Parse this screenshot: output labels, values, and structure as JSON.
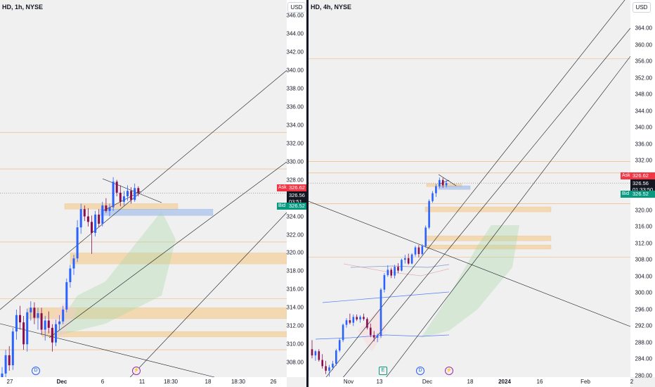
{
  "left": {
    "title": "HD, 1h, NYSE",
    "currency": "USD",
    "price_ticks": [
      "346.00",
      "344.00",
      "342.00",
      "340.00",
      "338.00",
      "336.00",
      "334.00",
      "332.00",
      "330.00",
      "328.00",
      "324.00",
      "322.00",
      "320.00",
      "318.00",
      "316.00",
      "314.00",
      "312.00",
      "310.00",
      "308.00"
    ],
    "time_labels": [
      "27",
      "Dec",
      "6",
      "11",
      "18:30",
      "18",
      "18:30",
      "26"
    ],
    "bold_time_labels": [
      "Dec"
    ],
    "ask_label": "Ask",
    "ask_value": "326.62",
    "last_value": "326.56",
    "countdown": "03:51",
    "bid_label": "Bid",
    "bid_value": "326.52",
    "markers": [
      {
        "glyph": "D",
        "color": "#2962ff"
      },
      {
        "glyph": "⚡",
        "color": "#9c27b0"
      }
    ]
  },
  "right": {
    "title": "HD, 4h, NYSE",
    "currency": "USD",
    "price_ticks": [
      "364.00",
      "360.00",
      "356.00",
      "352.00",
      "348.00",
      "344.00",
      "340.00",
      "336.00",
      "332.00",
      "320.00",
      "316.00",
      "312.00",
      "308.00",
      "304.00",
      "300.00",
      "296.00",
      "292.00",
      "288.00",
      "284.00",
      "280.00"
    ],
    "time_labels": [
      "Nov",
      "13",
      "Dec",
      "18",
      "2024",
      "16",
      "Feb",
      "2"
    ],
    "bold_time_labels": [
      "2024"
    ],
    "ask_label": "Ask",
    "ask_value": "326.62",
    "last_value": "326.56",
    "countdown": "01:33:50",
    "bid_label": "Bid",
    "bid_value": "326.52",
    "markers": [
      {
        "glyph": "E",
        "color": "#089981"
      },
      {
        "glyph": "D",
        "color": "#2962ff"
      },
      {
        "glyph": "⚡",
        "color": "#9c27b0"
      }
    ]
  },
  "colors": {
    "up": "#2962ff",
    "down": "#880e4f",
    "zone": "#f5c77e",
    "zone_line": "#f0a050",
    "blue_zone": "#90b4ec",
    "ask": "#f23645",
    "bid": "#089981",
    "last": "#131722"
  },
  "candles_left": [
    [
      305.5,
      307.5,
      304.2,
      306.8
    ],
    [
      306.8,
      309.4,
      305.9,
      308.8
    ],
    [
      308.8,
      309.8,
      307.1,
      307.7
    ],
    [
      307.7,
      311.8,
      307.2,
      311.4
    ],
    [
      311.4,
      313.8,
      310.5,
      313.2
    ],
    [
      313.2,
      314.2,
      311.6,
      312.4
    ],
    [
      312.4,
      313.1,
      309.4,
      310.0
    ],
    [
      310.0,
      313.9,
      309.2,
      313.5
    ],
    [
      313.5,
      314.7,
      312.6,
      314.0
    ],
    [
      314.0,
      314.6,
      312.2,
      312.9
    ],
    [
      312.9,
      314.0,
      311.6,
      313.4
    ],
    [
      313.4,
      314.0,
      311.0,
      311.6
    ],
    [
      311.6,
      313.1,
      310.4,
      312.6
    ],
    [
      312.6,
      313.6,
      311.2,
      311.8
    ],
    [
      311.8,
      312.2,
      309.2,
      310.2
    ],
    [
      310.2,
      312.7,
      309.8,
      312.2
    ],
    [
      312.2,
      313.2,
      311.5,
      312.5
    ],
    [
      312.5,
      314.2,
      312.2,
      313.8
    ],
    [
      313.8,
      317.2,
      313.5,
      316.8
    ],
    [
      316.8,
      318.7,
      316.2,
      318.3
    ],
    [
      318.3,
      319.8,
      317.6,
      319.4
    ],
    [
      319.4,
      323.6,
      319.0,
      322.8
    ],
    [
      322.8,
      325.4,
      322.1,
      324.8
    ],
    [
      324.8,
      325.2,
      323.5,
      324.0
    ],
    [
      324.0,
      324.9,
      322.9,
      323.4
    ],
    [
      323.4,
      324.1,
      319.9,
      322.2
    ],
    [
      322.2,
      324.6,
      321.8,
      324.2
    ],
    [
      324.2,
      324.8,
      322.8,
      323.2
    ],
    [
      323.2,
      325.6,
      322.9,
      325.2
    ],
    [
      325.2,
      326.0,
      324.4,
      324.6
    ],
    [
      324.6,
      325.4,
      324.0,
      325.0
    ],
    [
      325.0,
      328.3,
      324.6,
      327.8
    ],
    [
      327.8,
      328.0,
      326.2,
      326.6
    ],
    [
      326.6,
      327.4,
      325.1,
      325.6
    ],
    [
      325.6,
      326.8,
      325.2,
      326.2
    ],
    [
      326.2,
      327.4,
      325.7,
      326.8
    ],
    [
      326.8,
      327.2,
      325.4,
      325.8
    ],
    [
      325.8,
      327.6,
      325.6,
      327.1
    ],
    [
      327.1,
      327.3,
      326.2,
      326.56
    ]
  ],
  "candles_right": [
    [
      286.4,
      288.6,
      284.2,
      284.9
    ],
    [
      284.9,
      286.2,
      283.6,
      285.9
    ],
    [
      285.9,
      286.4,
      283.4,
      283.8
    ],
    [
      283.8,
      285.2,
      281.7,
      282.3
    ],
    [
      282.3,
      283.6,
      280.4,
      281.2
    ],
    [
      281.2,
      282.6,
      279.8,
      282.0
    ],
    [
      282.0,
      283.6,
      281.4,
      282.9
    ],
    [
      282.9,
      286.5,
      282.4,
      286.1
    ],
    [
      286.1,
      289.0,
      285.7,
      288.6
    ],
    [
      288.6,
      292.6,
      288.1,
      292.3
    ],
    [
      292.3,
      293.9,
      291.6,
      293.4
    ],
    [
      293.4,
      295.0,
      292.4,
      292.8
    ],
    [
      292.8,
      294.8,
      292.0,
      294.2
    ],
    [
      294.2,
      294.8,
      293.2,
      293.6
    ],
    [
      293.6,
      294.6,
      292.8,
      294.2
    ],
    [
      294.2,
      295.0,
      293.3,
      293.7
    ],
    [
      293.7,
      294.1,
      291.2,
      291.6
    ],
    [
      291.6,
      292.6,
      289.3,
      289.8
    ],
    [
      289.8,
      290.8,
      288.3,
      289.2
    ],
    [
      289.2,
      290.2,
      288.1,
      289.6
    ],
    [
      289.6,
      301.2,
      289.1,
      300.8
    ],
    [
      300.8,
      304.8,
      300.1,
      304.3
    ],
    [
      304.3,
      306.7,
      303.9,
      305.6
    ],
    [
      305.6,
      306.1,
      303.6,
      304.2
    ],
    [
      304.2,
      306.8,
      303.5,
      306.3
    ],
    [
      306.3,
      307.2,
      304.8,
      305.4
    ],
    [
      305.4,
      308.3,
      305.2,
      308.0
    ],
    [
      308.0,
      309.2,
      307.1,
      308.4
    ],
    [
      308.4,
      309.5,
      306.8,
      307.1
    ],
    [
      307.1,
      309.6,
      306.9,
      309.3
    ],
    [
      309.3,
      311.4,
      308.8,
      311.0
    ],
    [
      311.0,
      311.6,
      308.6,
      309.4
    ],
    [
      309.4,
      311.8,
      309.1,
      311.3
    ],
    [
      311.3,
      316.3,
      310.9,
      315.8
    ],
    [
      315.8,
      322.6,
      315.4,
      322.2
    ],
    [
      322.2,
      324.6,
      321.8,
      324.1
    ],
    [
      324.1,
      326.3,
      323.2,
      325.8
    ],
    [
      325.8,
      327.9,
      325.3,
      327.3
    ],
    [
      327.3,
      327.8,
      325.4,
      326.0
    ],
    [
      326.0,
      327.2,
      325.5,
      326.56
    ]
  ]
}
